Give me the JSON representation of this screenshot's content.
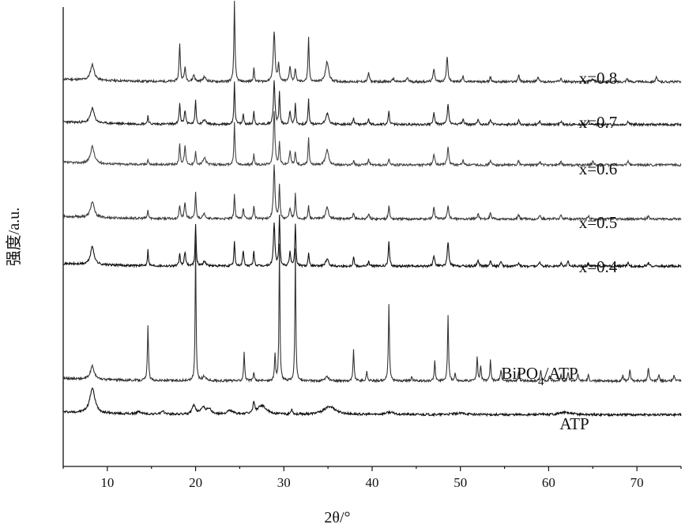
{
  "chart_data": {
    "type": "line",
    "title": "",
    "xlabel": "2θ/°",
    "ylabel": "强度/a.u.",
    "xlim": [
      5,
      75
    ],
    "xticks": [
      10,
      20,
      30,
      40,
      50,
      60,
      70
    ],
    "yticks_shown": false,
    "grid": false,
    "legend": "inline labels at right of each trace",
    "series": [
      {
        "name": "x=0.8",
        "baseline": 8.55,
        "color": "#333333",
        "noise_seed": 11,
        "peaks": [
          [
            8.3,
            0.35,
            0.25
          ],
          [
            18.2,
            0.85,
            0.08
          ],
          [
            18.8,
            0.3,
            0.1
          ],
          [
            19.8,
            0.15,
            0.12
          ],
          [
            21.0,
            0.1,
            0.2
          ],
          [
            24.4,
            1.8,
            0.07
          ],
          [
            26.6,
            0.3,
            0.07
          ],
          [
            28.9,
            1.1,
            0.12
          ],
          [
            29.4,
            0.4,
            0.08
          ],
          [
            30.7,
            0.35,
            0.1
          ],
          [
            31.3,
            0.3,
            0.08
          ],
          [
            32.8,
            1.0,
            0.07
          ],
          [
            34.9,
            0.45,
            0.2
          ],
          [
            39.6,
            0.2,
            0.1
          ],
          [
            42.4,
            0.08,
            0.1
          ],
          [
            44.0,
            0.1,
            0.1
          ],
          [
            47.0,
            0.3,
            0.1
          ],
          [
            48.5,
            0.55,
            0.1
          ],
          [
            50.3,
            0.12,
            0.1
          ],
          [
            53.4,
            0.1,
            0.1
          ],
          [
            56.6,
            0.15,
            0.1
          ],
          [
            58.8,
            0.1,
            0.1
          ],
          [
            61.4,
            0.1,
            0.1
          ],
          [
            65.0,
            0.08,
            0.1
          ],
          [
            68.9,
            0.08,
            0.1
          ],
          [
            72.2,
            0.1,
            0.1
          ]
        ]
      },
      {
        "name": "x=0.7",
        "baseline": 7.6,
        "color": "#222222",
        "noise_seed": 23,
        "peaks": [
          [
            8.3,
            0.33,
            0.25
          ],
          [
            14.6,
            0.18,
            0.07
          ],
          [
            18.2,
            0.45,
            0.08
          ],
          [
            18.8,
            0.3,
            0.1
          ],
          [
            20.0,
            0.55,
            0.07
          ],
          [
            21.0,
            0.1,
            0.2
          ],
          [
            24.4,
            0.95,
            0.07
          ],
          [
            25.4,
            0.22,
            0.08
          ],
          [
            26.6,
            0.3,
            0.07
          ],
          [
            28.9,
            0.95,
            0.1
          ],
          [
            29.5,
            0.7,
            0.07
          ],
          [
            30.7,
            0.3,
            0.1
          ],
          [
            31.3,
            0.45,
            0.07
          ],
          [
            32.8,
            0.55,
            0.07
          ],
          [
            34.9,
            0.25,
            0.2
          ],
          [
            37.9,
            0.15,
            0.08
          ],
          [
            39.6,
            0.12,
            0.1
          ],
          [
            41.9,
            0.3,
            0.08
          ],
          [
            47.0,
            0.25,
            0.1
          ],
          [
            48.6,
            0.45,
            0.1
          ],
          [
            50.3,
            0.12,
            0.1
          ],
          [
            52.0,
            0.12,
            0.1
          ],
          [
            53.4,
            0.12,
            0.1
          ],
          [
            56.6,
            0.1,
            0.1
          ],
          [
            59.0,
            0.08,
            0.1
          ],
          [
            61.4,
            0.08,
            0.1
          ],
          [
            64.5,
            0.07,
            0.1
          ],
          [
            69.0,
            0.08,
            0.1
          ]
        ]
      },
      {
        "name": "x=0.6",
        "baseline": 6.7,
        "color": "#444444",
        "noise_seed": 37,
        "peaks": [
          [
            8.3,
            0.38,
            0.25
          ],
          [
            14.6,
            0.12,
            0.07
          ],
          [
            18.2,
            0.45,
            0.08
          ],
          [
            18.8,
            0.4,
            0.1
          ],
          [
            20.0,
            0.3,
            0.07
          ],
          [
            21.0,
            0.15,
            0.2
          ],
          [
            24.4,
            0.95,
            0.07
          ],
          [
            26.6,
            0.25,
            0.07
          ],
          [
            28.9,
            1.2,
            0.1
          ],
          [
            29.5,
            0.5,
            0.07
          ],
          [
            30.7,
            0.3,
            0.1
          ],
          [
            31.3,
            0.3,
            0.08
          ],
          [
            32.8,
            0.6,
            0.07
          ],
          [
            34.9,
            0.35,
            0.2
          ],
          [
            37.9,
            0.1,
            0.08
          ],
          [
            39.6,
            0.12,
            0.1
          ],
          [
            41.9,
            0.15,
            0.08
          ],
          [
            47.0,
            0.25,
            0.1
          ],
          [
            48.6,
            0.4,
            0.1
          ],
          [
            50.3,
            0.1,
            0.1
          ],
          [
            53.4,
            0.1,
            0.1
          ],
          [
            56.6,
            0.1,
            0.1
          ],
          [
            59.0,
            0.08,
            0.1
          ],
          [
            61.4,
            0.07,
            0.1
          ],
          [
            65.0,
            0.07,
            0.1
          ],
          [
            69.0,
            0.08,
            0.1
          ]
        ]
      },
      {
        "name": "x=0.5",
        "baseline": 5.5,
        "color": "#3a3a3a",
        "noise_seed": 53,
        "peaks": [
          [
            8.3,
            0.35,
            0.25
          ],
          [
            14.6,
            0.18,
            0.07
          ],
          [
            18.2,
            0.3,
            0.08
          ],
          [
            18.8,
            0.35,
            0.1
          ],
          [
            20.0,
            0.6,
            0.07
          ],
          [
            21.0,
            0.1,
            0.2
          ],
          [
            24.4,
            0.55,
            0.07
          ],
          [
            25.4,
            0.25,
            0.08
          ],
          [
            26.6,
            0.3,
            0.07
          ],
          [
            28.9,
            1.2,
            0.1
          ],
          [
            29.5,
            0.75,
            0.07
          ],
          [
            30.7,
            0.25,
            0.1
          ],
          [
            31.3,
            0.55,
            0.07
          ],
          [
            32.8,
            0.3,
            0.07
          ],
          [
            34.9,
            0.25,
            0.2
          ],
          [
            37.9,
            0.15,
            0.08
          ],
          [
            39.6,
            0.12,
            0.1
          ],
          [
            41.9,
            0.3,
            0.08
          ],
          [
            47.0,
            0.25,
            0.1
          ],
          [
            48.6,
            0.3,
            0.1
          ],
          [
            52.0,
            0.12,
            0.1
          ],
          [
            53.4,
            0.12,
            0.1
          ],
          [
            56.6,
            0.1,
            0.1
          ],
          [
            59.0,
            0.08,
            0.1
          ],
          [
            61.4,
            0.08,
            0.1
          ],
          [
            64.5,
            0.07,
            0.1
          ],
          [
            71.3,
            0.08,
            0.1
          ]
        ]
      },
      {
        "name": "x=0.4",
        "baseline": 4.45,
        "color": "#111111",
        "noise_seed": 71,
        "peaks": [
          [
            8.3,
            0.4,
            0.25
          ],
          [
            14.6,
            0.35,
            0.07
          ],
          [
            18.2,
            0.25,
            0.08
          ],
          [
            18.8,
            0.3,
            0.1
          ],
          [
            20.0,
            0.95,
            0.07
          ],
          [
            21.0,
            0.1,
            0.2
          ],
          [
            24.4,
            0.55,
            0.07
          ],
          [
            25.4,
            0.35,
            0.08
          ],
          [
            26.6,
            0.35,
            0.07
          ],
          [
            28.9,
            0.95,
            0.1
          ],
          [
            29.5,
            1.1,
            0.07
          ],
          [
            30.7,
            0.3,
            0.1
          ],
          [
            31.3,
            0.95,
            0.07
          ],
          [
            32.8,
            0.3,
            0.07
          ],
          [
            34.9,
            0.15,
            0.2
          ],
          [
            37.9,
            0.22,
            0.08
          ],
          [
            39.6,
            0.1,
            0.1
          ],
          [
            41.9,
            0.55,
            0.08
          ],
          [
            47.0,
            0.25,
            0.1
          ],
          [
            48.6,
            0.55,
            0.1
          ],
          [
            52.0,
            0.15,
            0.1
          ],
          [
            53.4,
            0.12,
            0.1
          ],
          [
            54.6,
            0.1,
            0.1
          ],
          [
            56.6,
            0.08,
            0.1
          ],
          [
            59.0,
            0.1,
            0.1
          ],
          [
            61.4,
            0.08,
            0.1
          ],
          [
            62.2,
            0.1,
            0.1
          ],
          [
            64.5,
            0.07,
            0.1
          ],
          [
            69.0,
            0.07,
            0.1
          ],
          [
            71.3,
            0.08,
            0.1
          ]
        ]
      },
      {
        "name": "BiPO4/ATP",
        "baseline": 1.9,
        "color": "#333333",
        "noise_seed": 89,
        "peaks": [
          [
            8.3,
            0.3,
            0.25
          ],
          [
            14.6,
            1.2,
            0.07
          ],
          [
            20.0,
            3.15,
            0.06
          ],
          [
            21.0,
            0.1,
            0.2
          ],
          [
            25.5,
            0.65,
            0.07
          ],
          [
            26.6,
            0.2,
            0.07
          ],
          [
            29.0,
            0.6,
            0.07
          ],
          [
            29.5,
            3.05,
            0.06
          ],
          [
            31.3,
            2.95,
            0.06
          ],
          [
            34.9,
            0.1,
            0.2
          ],
          [
            37.9,
            0.7,
            0.07
          ],
          [
            39.4,
            0.2,
            0.08
          ],
          [
            41.9,
            1.7,
            0.07
          ],
          [
            44.5,
            0.1,
            0.08
          ],
          [
            47.1,
            0.45,
            0.07
          ],
          [
            48.6,
            1.45,
            0.07
          ],
          [
            49.4,
            0.15,
            0.08
          ],
          [
            51.9,
            0.55,
            0.07
          ],
          [
            52.3,
            0.3,
            0.08
          ],
          [
            53.4,
            0.45,
            0.07
          ],
          [
            54.6,
            0.25,
            0.08
          ],
          [
            56.6,
            0.2,
            0.08
          ],
          [
            59.1,
            0.25,
            0.08
          ],
          [
            60.1,
            0.12,
            0.08
          ],
          [
            61.4,
            0.15,
            0.08
          ],
          [
            62.2,
            0.2,
            0.08
          ],
          [
            63.3,
            0.15,
            0.08
          ],
          [
            64.5,
            0.12,
            0.08
          ],
          [
            68.4,
            0.12,
            0.08
          ],
          [
            69.2,
            0.25,
            0.08
          ],
          [
            71.3,
            0.3,
            0.08
          ],
          [
            72.5,
            0.15,
            0.08
          ],
          [
            74.2,
            0.15,
            0.08
          ]
        ]
      },
      {
        "name": "ATP",
        "baseline": 1.15,
        "color": "#111111",
        "noise_seed": 97,
        "peaks": [
          [
            8.3,
            0.55,
            0.35
          ],
          [
            13.6,
            0.05,
            0.3
          ],
          [
            16.3,
            0.05,
            0.3
          ],
          [
            19.8,
            0.2,
            0.2
          ],
          [
            20.8,
            0.15,
            0.3
          ],
          [
            21.5,
            0.12,
            0.3
          ],
          [
            23.9,
            0.08,
            0.4
          ],
          [
            26.6,
            0.25,
            0.1
          ],
          [
            27.5,
            0.2,
            0.6
          ],
          [
            30.9,
            0.12,
            0.1
          ],
          [
            35.2,
            0.18,
            0.8
          ],
          [
            42.0,
            0.05,
            0.6
          ],
          [
            50.0,
            0.03,
            1.0
          ],
          [
            61.8,
            0.05,
            0.8
          ]
        ]
      }
    ]
  }
}
